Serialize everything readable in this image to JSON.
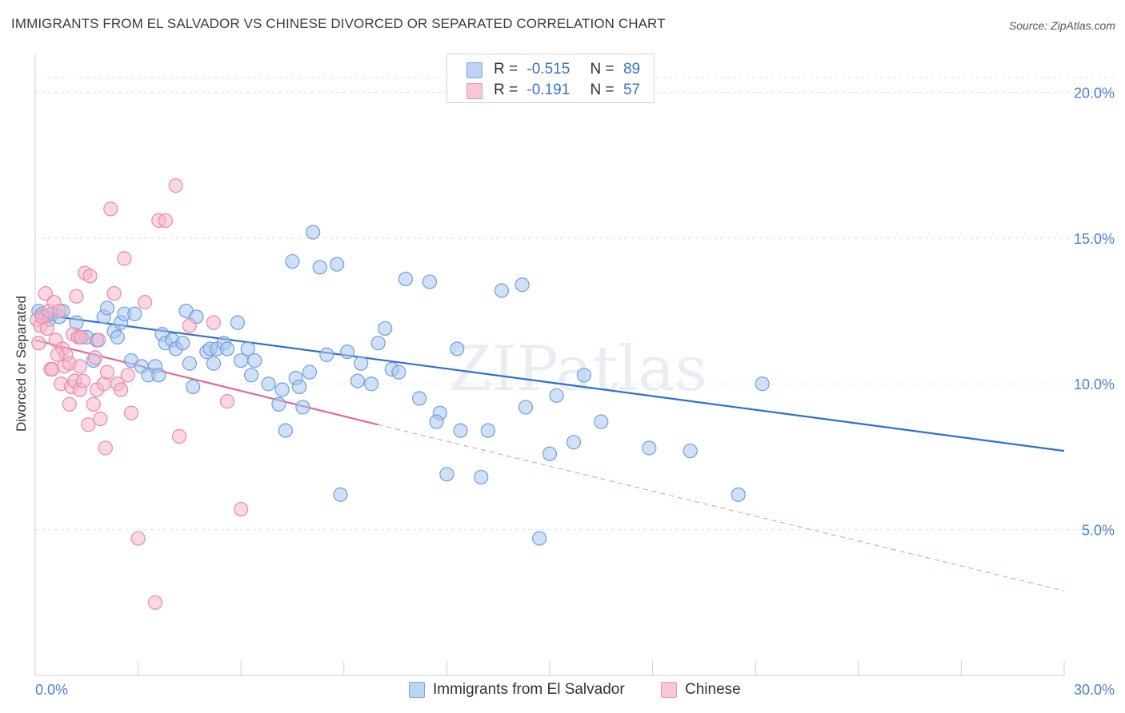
{
  "title": "IMMIGRANTS FROM EL SALVADOR VS CHINESE DIVORCED OR SEPARATED CORRELATION CHART",
  "source": "Source: ZipAtlas.com",
  "watermark": "ZIPatlas",
  "legend_top": {
    "r_label": "R =",
    "n_label": "N =",
    "series": [
      {
        "r": "-0.515",
        "n": "89"
      },
      {
        "r": "-0.191",
        "n": "57"
      }
    ]
  },
  "chart_data": {
    "type": "scatter",
    "title": "IMMIGRANTS FROM EL SALVADOR VS CHINESE DIVORCED OR SEPARATED CORRELATION CHART",
    "xlabel": "",
    "ylabel": "Divorced or Separated",
    "xlim": [
      0,
      30
    ],
    "ylim": [
      0,
      21
    ],
    "x_tick_labels": [
      "0.0%",
      "30.0%"
    ],
    "y_ticks": [
      5,
      10,
      15,
      20
    ],
    "y_tick_labels": [
      "5.0%",
      "10.0%",
      "15.0%",
      "20.0%"
    ],
    "grid": true,
    "legend_position": "top-center",
    "colors": {
      "blue_fill": "#a9c6ef",
      "blue_stroke": "#6f9ee0",
      "blue_line": "#2d6fd0",
      "pink_fill": "#f5b6cb",
      "pink_stroke": "#e88aa8",
      "pink_line": "#e06a95",
      "tick_text": "#4a7fd0"
    },
    "series": [
      {
        "name": "Immigrants from El Salvador",
        "r": -0.515,
        "n": 89,
        "trend": {
          "x0": 0,
          "y0": 12.4,
          "x1": 30,
          "y1": 7.7
        },
        "points": [
          [
            0.1,
            12.5
          ],
          [
            0.2,
            12.4
          ],
          [
            0.3,
            12.3
          ],
          [
            0.4,
            12.2
          ],
          [
            0.5,
            12.4
          ],
          [
            0.7,
            12.3
          ],
          [
            0.8,
            12.5
          ],
          [
            1.2,
            12.1
          ],
          [
            1.3,
            11.6
          ],
          [
            1.5,
            11.6
          ],
          [
            1.7,
            10.8
          ],
          [
            1.8,
            11.5
          ],
          [
            2.0,
            12.3
          ],
          [
            2.1,
            12.6
          ],
          [
            2.3,
            11.8
          ],
          [
            2.4,
            11.6
          ],
          [
            2.5,
            12.1
          ],
          [
            2.6,
            12.4
          ],
          [
            2.8,
            10.8
          ],
          [
            2.9,
            12.4
          ],
          [
            3.1,
            10.6
          ],
          [
            3.3,
            10.3
          ],
          [
            3.5,
            10.6
          ],
          [
            3.6,
            10.3
          ],
          [
            3.7,
            11.7
          ],
          [
            3.8,
            11.4
          ],
          [
            4.0,
            11.5
          ],
          [
            4.1,
            11.2
          ],
          [
            4.3,
            11.4
          ],
          [
            4.4,
            12.5
          ],
          [
            4.5,
            10.7
          ],
          [
            4.6,
            9.9
          ],
          [
            4.7,
            12.3
          ],
          [
            5.0,
            11.1
          ],
          [
            5.1,
            11.2
          ],
          [
            5.2,
            10.7
          ],
          [
            5.3,
            11.2
          ],
          [
            5.5,
            11.4
          ],
          [
            5.6,
            11.2
          ],
          [
            5.9,
            12.1
          ],
          [
            6.0,
            10.8
          ],
          [
            6.2,
            11.2
          ],
          [
            6.3,
            10.3
          ],
          [
            6.4,
            10.8
          ],
          [
            6.8,
            10.0
          ],
          [
            7.1,
            9.3
          ],
          [
            7.2,
            9.8
          ],
          [
            7.3,
            8.4
          ],
          [
            7.5,
            14.2
          ],
          [
            7.6,
            10.2
          ],
          [
            7.7,
            9.9
          ],
          [
            7.8,
            9.2
          ],
          [
            8.0,
            10.4
          ],
          [
            8.1,
            15.2
          ],
          [
            8.3,
            14.0
          ],
          [
            8.5,
            11.0
          ],
          [
            8.8,
            14.1
          ],
          [
            8.9,
            6.2
          ],
          [
            9.1,
            11.1
          ],
          [
            9.4,
            10.1
          ],
          [
            9.5,
            10.7
          ],
          [
            9.8,
            10.0
          ],
          [
            10.0,
            11.4
          ],
          [
            10.2,
            11.9
          ],
          [
            10.4,
            10.5
          ],
          [
            10.6,
            10.4
          ],
          [
            10.8,
            13.6
          ],
          [
            11.2,
            9.5
          ],
          [
            11.5,
            13.5
          ],
          [
            11.8,
            9.0
          ],
          [
            12.0,
            6.9
          ],
          [
            12.3,
            11.2
          ],
          [
            12.4,
            8.4
          ],
          [
            13.0,
            6.8
          ],
          [
            13.6,
            13.2
          ],
          [
            14.2,
            13.4
          ],
          [
            14.3,
            9.2
          ],
          [
            14.7,
            4.7
          ],
          [
            15.0,
            7.6
          ],
          [
            15.2,
            9.6
          ],
          [
            15.7,
            8.0
          ],
          [
            16.0,
            10.3
          ],
          [
            16.5,
            8.7
          ],
          [
            17.9,
            7.8
          ],
          [
            19.1,
            7.7
          ],
          [
            20.5,
            6.2
          ],
          [
            21.2,
            10.0
          ],
          [
            11.7,
            8.7
          ],
          [
            13.2,
            8.4
          ]
        ]
      },
      {
        "name": "Chinese",
        "r": -0.191,
        "n": 57,
        "trend": {
          "x0": 0,
          "y0": 11.5,
          "x1": 10.0,
          "y1": 8.6
        },
        "trend_ext": {
          "x0": 10.0,
          "y0": 8.6,
          "x1": 30,
          "y1": 2.9
        },
        "points": [
          [
            0.05,
            12.2
          ],
          [
            0.1,
            11.4
          ],
          [
            0.15,
            12.0
          ],
          [
            0.2,
            12.3
          ],
          [
            0.3,
            13.1
          ],
          [
            0.35,
            11.9
          ],
          [
            0.4,
            12.5
          ],
          [
            0.45,
            10.5
          ],
          [
            0.5,
            10.5
          ],
          [
            0.55,
            12.8
          ],
          [
            0.6,
            11.5
          ],
          [
            0.7,
            12.5
          ],
          [
            0.75,
            10.0
          ],
          [
            0.8,
            11.2
          ],
          [
            0.85,
            10.6
          ],
          [
            0.9,
            11.0
          ],
          [
            1.0,
            10.7
          ],
          [
            1.05,
            9.9
          ],
          [
            1.1,
            11.7
          ],
          [
            1.15,
            10.1
          ],
          [
            1.2,
            13.0
          ],
          [
            1.25,
            11.6
          ],
          [
            1.3,
            9.8
          ],
          [
            1.4,
            10.1
          ],
          [
            1.45,
            13.8
          ],
          [
            1.55,
            8.6
          ],
          [
            1.6,
            13.7
          ],
          [
            1.7,
            9.3
          ],
          [
            1.75,
            10.9
          ],
          [
            1.8,
            9.8
          ],
          [
            1.85,
            11.5
          ],
          [
            1.9,
            8.8
          ],
          [
            2.0,
            10.0
          ],
          [
            2.05,
            7.8
          ],
          [
            2.1,
            10.4
          ],
          [
            2.2,
            16.0
          ],
          [
            2.3,
            13.1
          ],
          [
            2.4,
            10.0
          ],
          [
            2.5,
            9.8
          ],
          [
            2.6,
            14.3
          ],
          [
            2.7,
            10.3
          ],
          [
            2.8,
            9.0
          ],
          [
            3.0,
            4.7
          ],
          [
            3.2,
            12.8
          ],
          [
            3.5,
            2.5
          ],
          [
            3.6,
            15.6
          ],
          [
            3.8,
            15.6
          ],
          [
            4.1,
            16.8
          ],
          [
            4.2,
            8.2
          ],
          [
            4.5,
            12.0
          ],
          [
            5.2,
            12.1
          ],
          [
            5.6,
            9.4
          ],
          [
            6.0,
            5.7
          ],
          [
            1.0,
            9.3
          ],
          [
            1.3,
            10.6
          ],
          [
            0.65,
            11.0
          ],
          [
            1.35,
            11.6
          ]
        ]
      }
    ]
  },
  "legend_bottom": {
    "items": [
      "Immigrants from El Salvador",
      "Chinese"
    ]
  }
}
